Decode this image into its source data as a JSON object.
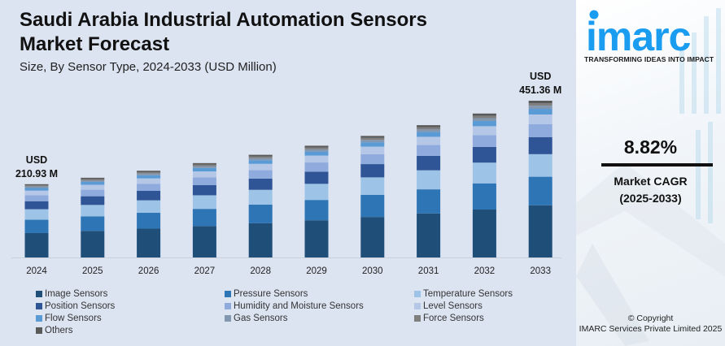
{
  "header": {
    "title_line1": "Saudi Arabia Industrial Automation Sensors",
    "title_line2": "Market Forecast",
    "subtitle": "Size, By Sensor Type, 2024-2033 (USD Million)"
  },
  "brand": {
    "logo_text": "imarc",
    "tagline": "TRANSFORMING IDEAS INTO IMPACT",
    "color": "#1a9cf0"
  },
  "cagr": {
    "value": "8.82%",
    "label_line1": "Market CAGR",
    "label_line2": "(2025-2033)"
  },
  "copyright": {
    "line1": "© Copyright",
    "line2": "IMARC Services Private Limited 2025"
  },
  "chart_data": {
    "type": "bar",
    "stacked": true,
    "title": "Saudi Arabia Industrial Automation Sensors Market Forecast",
    "subtitle": "Size, By Sensor Type, 2024-2033 (USD Million)",
    "xlabel": "",
    "ylabel": "USD Million",
    "categories": [
      "2024",
      "2025",
      "2026",
      "2027",
      "2028",
      "2029",
      "2030",
      "2031",
      "2032",
      "2033"
    ],
    "totals": [
      210.93,
      229.5,
      249.7,
      271.7,
      295.6,
      321.7,
      350.0,
      380.9,
      414.4,
      451.36
    ],
    "annotations": [
      {
        "category": "2024",
        "line1": "USD",
        "line2": "210.93 M"
      },
      {
        "category": "2033",
        "line1": "USD",
        "line2": "451.36 M"
      }
    ],
    "grid": false,
    "legend_position": "bottom",
    "series": [
      {
        "name": "Image Sensors",
        "color": "#1f4e79",
        "share": 0.333
      },
      {
        "name": "Pressure Sensors",
        "color": "#2e75b6",
        "share": 0.182
      },
      {
        "name": "Temperature Sensors",
        "color": "#9dc3e6",
        "share": 0.144
      },
      {
        "name": "Position Sensors",
        "color": "#2f5597",
        "share": 0.109
      },
      {
        "name": "Humidity and Moisture Sensors",
        "color": "#8faadc",
        "share": 0.082
      },
      {
        "name": "Level Sensors",
        "color": "#b4c7e7",
        "share": 0.062
      },
      {
        "name": "Flow Sensors",
        "color": "#5b9bd5",
        "share": 0.036
      },
      {
        "name": "Gas Sensors",
        "color": "#8497b0",
        "share": 0.02
      },
      {
        "name": "Force Sensors",
        "color": "#7f7f7f",
        "share": 0.016
      },
      {
        "name": "Others",
        "color": "#595959",
        "share": 0.016
      }
    ]
  }
}
